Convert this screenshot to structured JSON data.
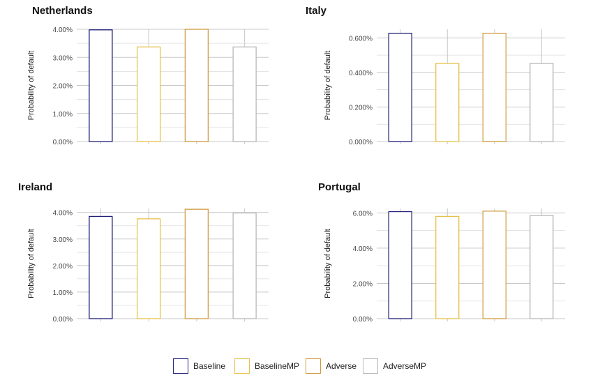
{
  "colors": {
    "Baseline": "#1f1f7a",
    "BaselineMP": "#e8c14a",
    "Adverse": "#d09a3e",
    "AdverseMP": "#b8b8b8",
    "grid": "#c8c8c8",
    "axis_text": "#444444"
  },
  "legend": {
    "items": [
      {
        "label": "Baseline",
        "color": "#1f1f7a"
      },
      {
        "label": "BaselineMP",
        "color": "#e8c14a"
      },
      {
        "label": "Adverse",
        "color": "#d09a3e"
      },
      {
        "label": "AdverseMP",
        "color": "#b8b8b8"
      }
    ]
  },
  "chart_data": [
    {
      "type": "bar",
      "title": "Netherlands",
      "ylabel": "Probability of default",
      "categories": [
        "Baseline",
        "BaselineMP",
        "Adverse",
        "AdverseMP"
      ],
      "values": [
        3.98,
        3.37,
        4.0,
        3.37
      ],
      "ylim": [
        0,
        4.0
      ],
      "yticks": [
        0,
        1,
        2,
        3,
        4
      ],
      "ytick_labels": [
        "0.00%",
        "1.00%",
        "2.00%",
        "3.00%",
        "4.00%"
      ],
      "grid": true
    },
    {
      "type": "bar",
      "title": "Italy",
      "ylabel": "Probability of default",
      "categories": [
        "Baseline",
        "BaselineMP",
        "Adverse",
        "AdverseMP"
      ],
      "values": [
        0.627,
        0.452,
        0.627,
        0.452
      ],
      "ylim": [
        0,
        0.65
      ],
      "yticks": [
        0,
        0.2,
        0.4,
        0.6
      ],
      "ytick_labels": [
        "0.000%",
        "0.200%",
        "0.400%",
        "0.600%"
      ],
      "grid": true
    },
    {
      "type": "bar",
      "title": "Ireland",
      "ylabel": "Probability of default",
      "categories": [
        "Baseline",
        "BaselineMP",
        "Adverse",
        "AdverseMP"
      ],
      "values": [
        3.85,
        3.76,
        4.12,
        3.98
      ],
      "ylim": [
        0,
        4.15
      ],
      "yticks": [
        0,
        1,
        2,
        3,
        4
      ],
      "ytick_labels": [
        "0.00%",
        "1.00%",
        "2.00%",
        "3.00%",
        "4.00%"
      ],
      "grid": true
    },
    {
      "type": "bar",
      "title": "Portugal",
      "ylabel": "Probability of default",
      "categories": [
        "Baseline",
        "BaselineMP",
        "Adverse",
        "AdverseMP"
      ],
      "values": [
        6.07,
        5.8,
        6.1,
        5.85
      ],
      "ylim": [
        0,
        6.25
      ],
      "yticks": [
        0,
        2,
        4,
        6
      ],
      "ytick_labels": [
        "0.00%",
        "2.00%",
        "4.00%",
        "6.00%"
      ],
      "grid": true
    }
  ]
}
